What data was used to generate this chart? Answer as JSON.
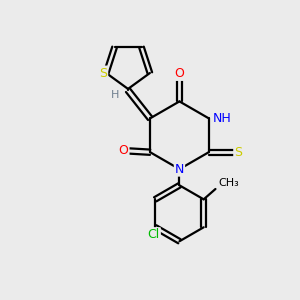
{
  "background_color": "#ebebeb",
  "figure_size": [
    3.0,
    3.0
  ],
  "dpi": 100,
  "atom_colors": {
    "S": "#cccc00",
    "N": "#0000ff",
    "O": "#ff0000",
    "Cl": "#00bb00",
    "C": "#000000",
    "H": "#708090"
  },
  "bond_color": "#000000",
  "bond_width": 1.6,
  "font_size_atoms": 9
}
